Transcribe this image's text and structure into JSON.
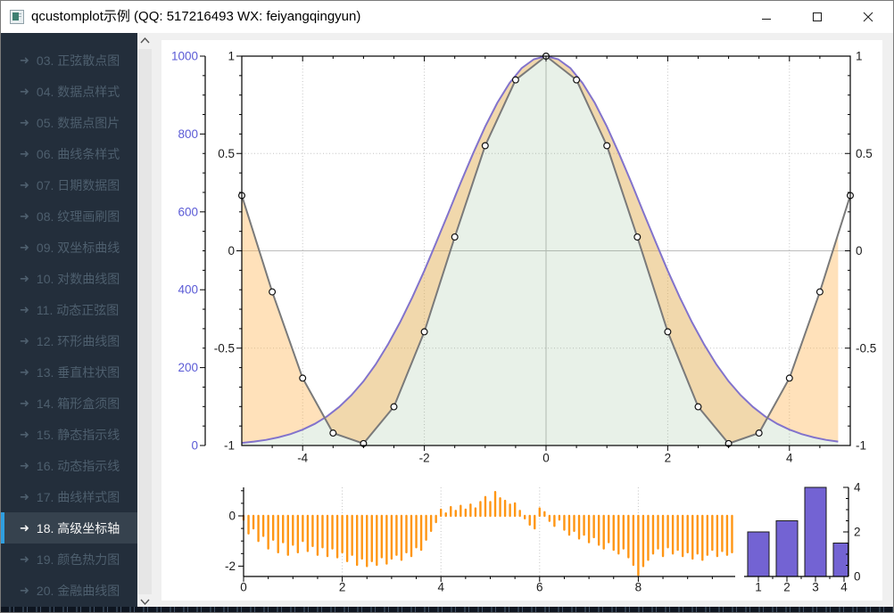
{
  "window": {
    "title": "qcustomplot示例 (QQ: 517216493 WX: feiyangqingyun)"
  },
  "sidebar": {
    "accent_color": "#2f9fe0",
    "items": [
      {
        "label": "03. 正弦散点图",
        "selected": false
      },
      {
        "label": "04. 数据点样式",
        "selected": false
      },
      {
        "label": "05. 数据点图片",
        "selected": false
      },
      {
        "label": "06. 曲线条样式",
        "selected": false
      },
      {
        "label": "07. 日期数据图",
        "selected": false
      },
      {
        "label": "08. 纹理画刷图",
        "selected": false
      },
      {
        "label": "09. 双坐标曲线",
        "selected": false
      },
      {
        "label": "10. 对数曲线图",
        "selected": false
      },
      {
        "label": "11. 动态正弦图",
        "selected": false
      },
      {
        "label": "12. 环形曲线图",
        "selected": false
      },
      {
        "label": "13. 垂直柱状图",
        "selected": false
      },
      {
        "label": "14. 箱形盒须图",
        "selected": false
      },
      {
        "label": "15. 静态指示线",
        "selected": false
      },
      {
        "label": "16. 动态指示线",
        "selected": false
      },
      {
        "label": "17. 曲线样式图",
        "selected": false
      },
      {
        "label": "18. 高级坐标轴",
        "selected": true
      },
      {
        "label": "19. 颜色热力图",
        "selected": false
      },
      {
        "label": "20. 金融曲线图",
        "selected": false
      }
    ]
  },
  "chart_data": [
    {
      "name": "main-plot",
      "type": "line",
      "xlabel": "",
      "ylabel": "",
      "axes": {
        "bottom": {
          "range": [
            -5,
            5
          ],
          "ticks": [
            -4,
            -2,
            0,
            2,
            4
          ]
        },
        "left_inner": {
          "range": [
            -1,
            1
          ],
          "ticks": [
            1,
            0.5,
            0,
            -0.5,
            -1
          ]
        },
        "left_outer": {
          "range": [
            0,
            1000
          ],
          "ticks": [
            1000,
            800,
            600,
            400,
            200,
            0
          ],
          "label_color": "#5b5bd6"
        },
        "right": {
          "range": [
            -1,
            1
          ],
          "ticks": [
            1,
            0.5,
            0,
            -0.5,
            -1
          ]
        }
      },
      "grid": {
        "vertical_dotted": [
          -4,
          -2,
          2,
          4
        ],
        "horizontal_dotted": [
          0.5,
          -0.5
        ],
        "zero_lines": true
      },
      "series": [
        {
          "name": "gauss",
          "axis": "left_outer",
          "color": "#8273cc",
          "fill": "rgba(110,170,110,0.16)",
          "x_start": -5,
          "x_step": 0.2,
          "values": [
            6.7,
            10,
            14.5,
            20.8,
            29.4,
            40.8,
            55.6,
            74.9,
            99,
            129,
            165,
            208,
            259,
            316,
            380,
            449,
            523,
            599,
            676,
            750,
            819,
            880,
            931,
            969,
            992,
            1000,
            992,
            969,
            931,
            880,
            819,
            750,
            676,
            599,
            523,
            449,
            380,
            316,
            259,
            208,
            165,
            129,
            99,
            74.9,
            55.6,
            40.8,
            29.4,
            20.8,
            14.5,
            10
          ]
        },
        {
          "name": "cos",
          "axis": "left_inner",
          "color": "#7a7a7a",
          "marker": "white-circle",
          "channel_fill_to": "gauss",
          "channel_fill_color": "rgba(255,176,74,0.38)",
          "x_start": -5,
          "x_step": 0.5,
          "values": [
            0.284,
            -0.211,
            -0.654,
            -0.936,
            -0.99,
            -0.801,
            -0.416,
            0.071,
            0.54,
            0.878,
            1,
            0.878,
            0.54,
            0.071,
            -0.416,
            -0.801,
            -0.99,
            -0.936,
            -0.654,
            -0.211,
            0.284
          ]
        }
      ]
    },
    {
      "name": "random-impulse-subplot",
      "type": "impulse",
      "color": "#ff9614",
      "axes": {
        "bottom": {
          "range": [
            0,
            9.95
          ],
          "ticks": [
            0,
            2,
            4,
            6,
            8
          ]
        },
        "left": {
          "range": [
            -2.45,
            1.15
          ],
          "ticks": [
            0,
            -2
          ]
        }
      },
      "grid": {
        "vertical_dotted": [
          2,
          4,
          6,
          8
        ]
      },
      "x_start": 0,
      "x_step": 0.1,
      "values": [
        -0.15,
        -0.7,
        -0.5,
        -1.0,
        -0.8,
        -1.3,
        -0.95,
        -1.45,
        -1.05,
        -1.55,
        -1.15,
        -1.45,
        -1.0,
        -1.4,
        -1.2,
        -1.55,
        -1.25,
        -1.6,
        -1.3,
        -1.65,
        -1.45,
        -1.8,
        -1.55,
        -1.95,
        -1.7,
        -2.0,
        -1.8,
        -1.95,
        -1.65,
        -1.9,
        -1.7,
        -1.55,
        -1.75,
        -1.45,
        -1.6,
        -1.25,
        -1.35,
        -0.95,
        -0.6,
        -0.25,
        0.25,
        0.1,
        0.35,
        0.2,
        0.4,
        0.25,
        0.45,
        0.3,
        0.55,
        0.75,
        0.55,
        0.95,
        0.7,
        0.6,
        0.45,
        0.5,
        0.2,
        -0.1,
        -0.35,
        -0.5,
        0.3,
        0.15,
        -0.2,
        -0.4,
        -0.15,
        -0.55,
        -0.75,
        -0.6,
        -0.9,
        -0.75,
        -1.05,
        -0.85,
        -1.15,
        -1.3,
        -1.05,
        -1.35,
        -1.5,
        -1.3,
        -1.65,
        -1.95,
        -2.35,
        -2.0,
        -1.75,
        -1.5,
        -1.3,
        -1.6,
        -1.25,
        -1.5,
        -1.35,
        -1.6,
        -1.45,
        -1.7,
        -1.5,
        -1.75,
        -1.55,
        -1.35,
        -1.6,
        -1.4,
        -1.55,
        -1.45
      ]
    },
    {
      "name": "bars-subplot",
      "type": "bar",
      "categories": [
        1,
        2,
        3,
        4
      ],
      "values": [
        2,
        2.5,
        4,
        1.5
      ],
      "bar_fill": "#7363d3",
      "bar_stroke": "#1a1a1a",
      "axes": {
        "bottom": {
          "range": [
            0.5,
            4.15
          ],
          "ticks": [
            1,
            2,
            3,
            4
          ]
        },
        "right": {
          "range": [
            0,
            4
          ],
          "ticks": [
            0,
            2,
            4
          ]
        }
      }
    }
  ]
}
